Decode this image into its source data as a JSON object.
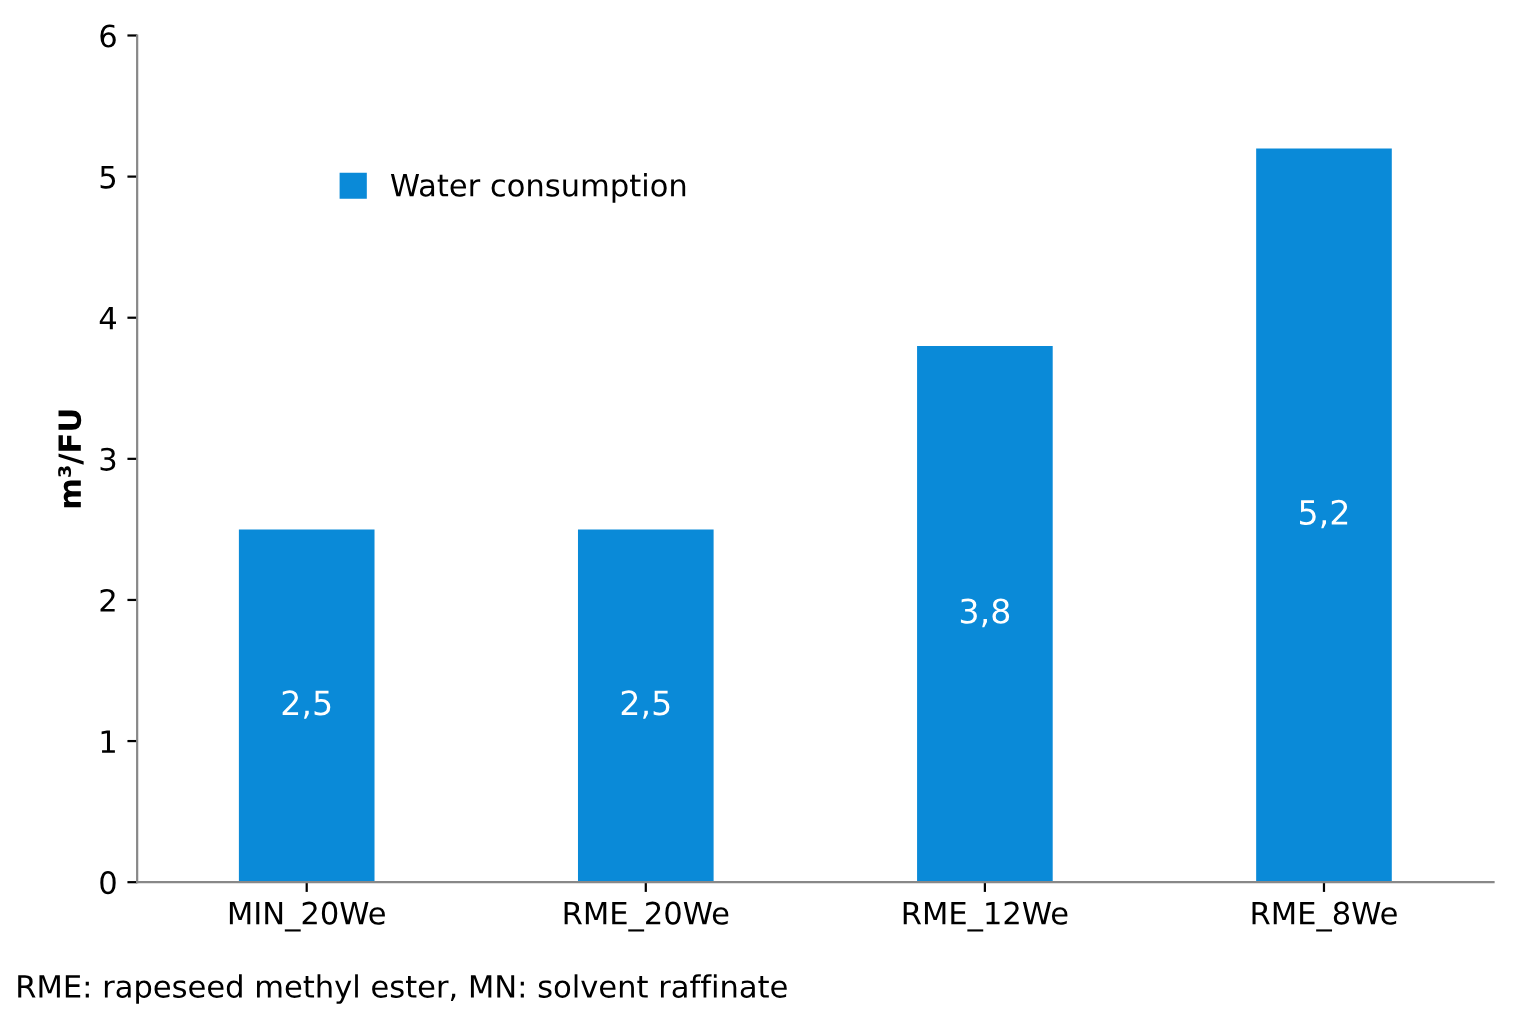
{
  "chart_data": {
    "type": "bar",
    "ylabel": "m³/FU",
    "categories": [
      "MIN_20We",
      "RME_20We",
      "RME_12We",
      "RME_8We"
    ],
    "series": [
      {
        "name": "Water consumption",
        "color": "#0a8ad8",
        "values": [
          2.5,
          2.5,
          3.8,
          5.2
        ],
        "value_labels": [
          "2,5",
          "2,5",
          "3,8",
          "5,2"
        ]
      }
    ],
    "ylim": [
      0,
      6
    ],
    "yticks": [
      0,
      1,
      2,
      3,
      4,
      5,
      6
    ],
    "grid": false,
    "legend": "top left",
    "annotations": [
      "RME: rapeseed methyl ester, MN: solvent raffinate"
    ]
  }
}
